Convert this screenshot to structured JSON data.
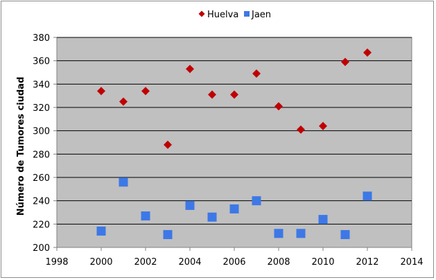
{
  "chart_data": {
    "type": "scatter",
    "title": "",
    "xlabel": "",
    "ylabel": "Número de Tumores ciudad",
    "xlim": [
      1998,
      2014
    ],
    "ylim": [
      200,
      380
    ],
    "xticks": [
      1998,
      2000,
      2002,
      2004,
      2006,
      2008,
      2010,
      2012,
      2014
    ],
    "yticks": [
      200,
      220,
      240,
      260,
      280,
      300,
      320,
      340,
      360,
      380
    ],
    "grid": "horizontal",
    "plot_background": "#c0c0c0",
    "legend_position": "top",
    "series": [
      {
        "name": "Huelva",
        "marker": "diamond",
        "color": "#c00000",
        "x": [
          2000,
          2001,
          2002,
          2003,
          2004,
          2005,
          2006,
          2007,
          2008,
          2009,
          2010,
          2011,
          2012
        ],
        "y": [
          334,
          325,
          334,
          288,
          353,
          331,
          331,
          349,
          321,
          301,
          304,
          359,
          367
        ]
      },
      {
        "name": "Jaen",
        "marker": "square",
        "color": "#3d78e6",
        "x": [
          2000,
          2001,
          2002,
          2003,
          2004,
          2005,
          2006,
          2007,
          2008,
          2009,
          2010,
          2011,
          2012
        ],
        "y": [
          214,
          256,
          227,
          211,
          236,
          226,
          233,
          240,
          212,
          212,
          224,
          211,
          244
        ]
      }
    ]
  }
}
